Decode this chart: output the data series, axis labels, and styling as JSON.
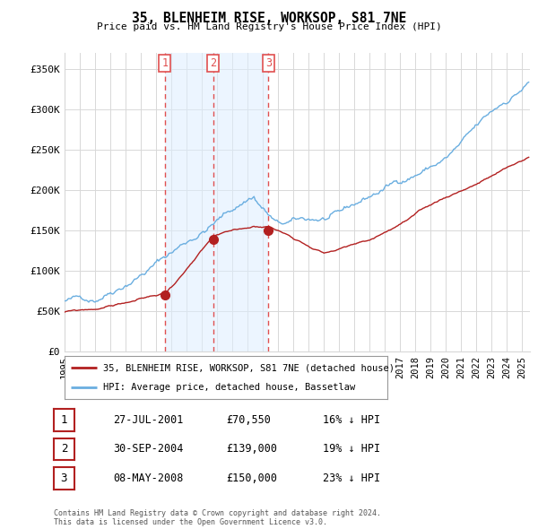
{
  "title": "35, BLENHEIM RISE, WORKSOP, S81 7NE",
  "subtitle": "Price paid vs. HM Land Registry's House Price Index (HPI)",
  "ylabel_ticks": [
    "£0",
    "£50K",
    "£100K",
    "£150K",
    "£200K",
    "£250K",
    "£300K",
    "£350K"
  ],
  "ylim": [
    0,
    370000
  ],
  "xlim_start": 1995.0,
  "xlim_end": 2025.5,
  "vline_dates": [
    2001.57,
    2004.75,
    2008.36
  ],
  "vline_labels": [
    "1",
    "2",
    "3"
  ],
  "sale_dates": [
    2001.57,
    2004.75,
    2008.36
  ],
  "sale_prices": [
    70550,
    139000,
    150000
  ],
  "legend_line1": "35, BLENHEIM RISE, WORKSOP, S81 7NE (detached house)",
  "legend_line2": "HPI: Average price, detached house, Bassetlaw",
  "table_rows": [
    {
      "num": "1",
      "date": "27-JUL-2001",
      "price": "£70,550",
      "hpi": "16% ↓ HPI"
    },
    {
      "num": "2",
      "date": "30-SEP-2004",
      "price": "£139,000",
      "hpi": "19% ↓ HPI"
    },
    {
      "num": "3",
      "date": "08-MAY-2008",
      "price": "£150,000",
      "hpi": "23% ↓ HPI"
    }
  ],
  "footer": "Contains HM Land Registry data © Crown copyright and database right 2024.\nThis data is licensed under the Open Government Licence v3.0.",
  "hpi_color": "#6aaee0",
  "sale_color": "#b22020",
  "vline_color": "#e05050",
  "grid_color": "#d8d8d8",
  "shade_color": "#ddeeff",
  "background_color": "#ffffff"
}
